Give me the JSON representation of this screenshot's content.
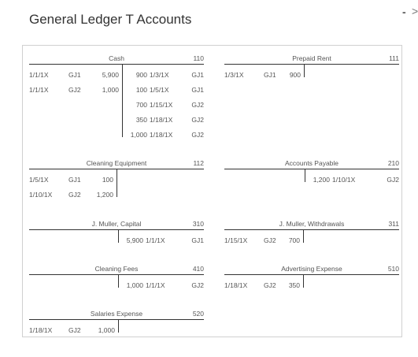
{
  "title": "General Ledger T Accounts",
  "window": {
    "minimize": "-",
    "chevron": ">"
  },
  "accounts": [
    {
      "name": "Cash",
      "number": "110",
      "debits": [
        {
          "date": "1/1/1X",
          "ref": "GJ1",
          "amount": "5,900"
        },
        {
          "date": "1/1/1X",
          "ref": "GJ2",
          "amount": "1,000"
        }
      ],
      "credits": [
        {
          "amount": "900",
          "date": "1/3/1X",
          "ref": "GJ1"
        },
        {
          "amount": "100",
          "date": "1/5/1X",
          "ref": "GJ1"
        },
        {
          "amount": "700",
          "date": "1/15/1X",
          "ref": "GJ2"
        },
        {
          "amount": "350",
          "date": "1/18/1X",
          "ref": "GJ2"
        },
        {
          "amount": "1,000",
          "date": "1/18/1X",
          "ref": "GJ2"
        }
      ]
    },
    {
      "name": "Prepaid Rent",
      "number": "111",
      "debits": [
        {
          "date": "1/3/1X",
          "ref": "GJ1",
          "amount": "900"
        }
      ],
      "credits": []
    },
    {
      "name": "Cleaning Equipment",
      "number": "112",
      "debits": [
        {
          "date": "1/5/1X",
          "ref": "GJ1",
          "amount": "100"
        },
        {
          "date": "1/10/1X",
          "ref": "GJ2",
          "amount": "1,200"
        }
      ],
      "credits": []
    },
    {
      "name": "Accounts Payable",
      "number": "210",
      "debits": [],
      "credits": [
        {
          "amount": "1,200",
          "date": "1/10/1X",
          "ref": "GJ2"
        }
      ]
    },
    {
      "name": "J. Muller, Capital",
      "number": "310",
      "debits": [],
      "credits": [
        {
          "amount": "5,900",
          "date": "1/1/1X",
          "ref": "GJ1"
        }
      ]
    },
    {
      "name": "J. Muller, Withdrawals",
      "number": "311",
      "debits": [
        {
          "date": "1/15/1X",
          "ref": "GJ2",
          "amount": "700"
        }
      ],
      "credits": []
    },
    {
      "name": "Cleaning Fees",
      "number": "410",
      "debits": [],
      "credits": [
        {
          "amount": "1,000",
          "date": "1/1/1X",
          "ref": "GJ2"
        }
      ]
    },
    {
      "name": "Advertising Expense",
      "number": "510",
      "debits": [
        {
          "date": "1/18/1X",
          "ref": "GJ2",
          "amount": "350"
        }
      ],
      "credits": []
    },
    {
      "name": "Salaries Expense",
      "number": "520",
      "debits": [
        {
          "date": "1/18/1X",
          "ref": "GJ2",
          "amount": "1,000"
        }
      ],
      "credits": []
    }
  ]
}
